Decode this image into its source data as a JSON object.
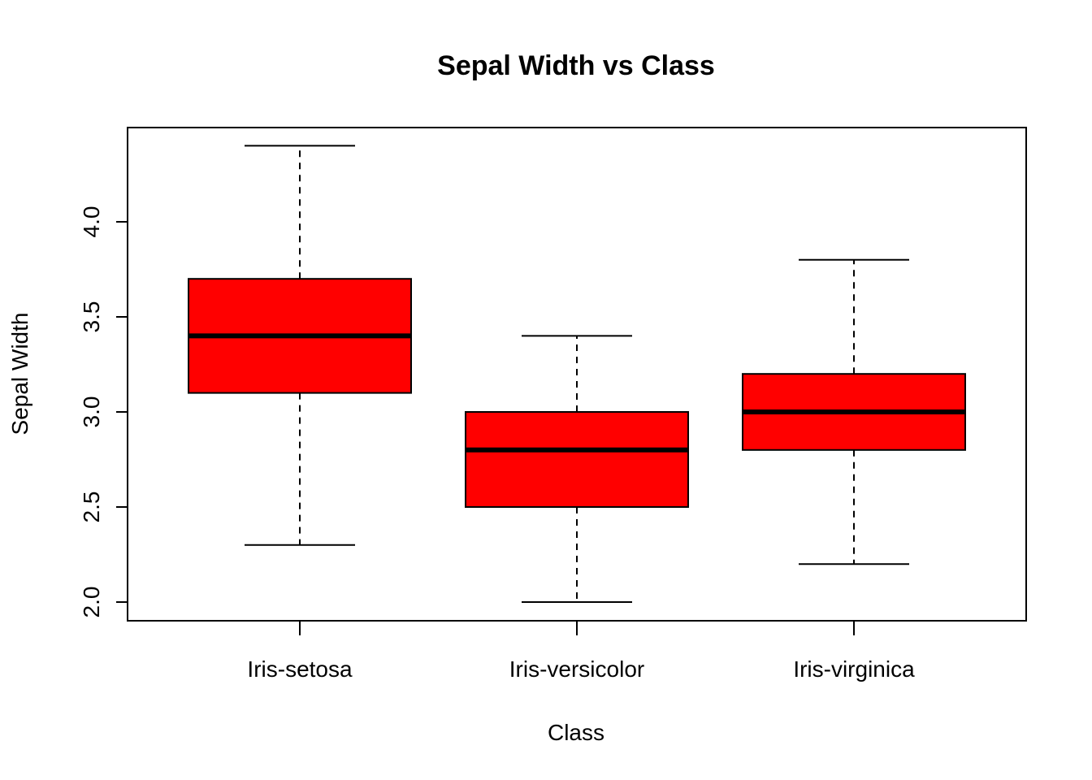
{
  "chart_data": {
    "type": "boxplot",
    "title": "Sepal Width vs Class",
    "xlabel": "Class",
    "ylabel": "Sepal Width",
    "categories": [
      "Iris-setosa",
      "Iris-versicolor",
      "Iris-virginica"
    ],
    "y_ticks": [
      "2.0",
      "2.5",
      "3.0",
      "3.5",
      "4.0"
    ],
    "ylim": [
      1.9,
      4.5
    ],
    "boxes": [
      {
        "min": 2.3,
        "q1": 3.1,
        "median": 3.4,
        "q3": 3.7,
        "max": 4.4
      },
      {
        "min": 2.0,
        "q1": 2.5,
        "median": 2.8,
        "q3": 3.0,
        "max": 3.4
      },
      {
        "min": 2.2,
        "q1": 2.8,
        "median": 3.0,
        "q3": 3.2,
        "max": 3.8
      }
    ],
    "box_fill": "#ff0000",
    "line_color": "#000000",
    "grid": false,
    "legend": "none"
  }
}
